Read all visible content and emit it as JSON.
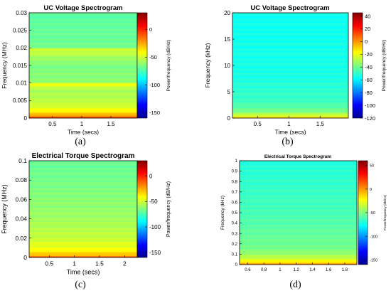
{
  "chart_data": [
    {
      "type": "heatmap",
      "id": "a",
      "panel_label": "(a)",
      "title": "UC Voltage Spectrogram",
      "xlabel": "Time (secs)",
      "ylabel": "Frequency (MHz)",
      "colorbar_label": "Power/frequency (dB/Hz)",
      "xlim": [
        0.1,
        1.95
      ],
      "ylim": [
        0,
        0.03
      ],
      "xticks": [
        0.5,
        1,
        1.5
      ],
      "xtick_labels": [
        "0.5",
        "1",
        "1.5"
      ],
      "yticks": [
        0,
        0.005,
        0.01,
        0.015,
        0.02,
        0.025,
        0.03
      ],
      "ytick_labels": [
        "0",
        "0.005",
        "0.01",
        "0.015",
        "0.02",
        "0.025",
        "0.03"
      ],
      "clim": [
        -160,
        30
      ],
      "cticks": [
        0,
        -50,
        -100,
        -150
      ],
      "ctick_labels": [
        "0",
        "-50",
        "-100",
        "-150"
      ],
      "bands": [
        {
          "y": 0.0,
          "value": 5
        },
        {
          "y": 0.0007,
          "value": -25
        },
        {
          "y": 0.002,
          "value": -40
        },
        {
          "y": 0.004,
          "value": -52
        },
        {
          "y": 0.008,
          "value": -58
        },
        {
          "y": 0.0097,
          "value": -42
        },
        {
          "y": 0.0103,
          "value": -62
        },
        {
          "y": 0.015,
          "value": -66
        },
        {
          "y": 0.0197,
          "value": -50
        },
        {
          "y": 0.0203,
          "value": -68
        },
        {
          "y": 0.025,
          "value": -70
        },
        {
          "y": 0.03,
          "value": -72
        }
      ]
    },
    {
      "type": "heatmap",
      "id": "b",
      "panel_label": "(b)",
      "title": "UC Voltage Spectrogram",
      "xlabel": "Time (secs)",
      "ylabel": "Frequency (kHz)",
      "colorbar_label": "Power/frequency (dB/Hz)",
      "xlim": [
        0.1,
        1.95
      ],
      "ylim": [
        0,
        20
      ],
      "xticks": [
        0.5,
        1,
        1.5
      ],
      "xtick_labels": [
        "0.5",
        "1",
        "1.5"
      ],
      "yticks": [
        0,
        5,
        10,
        15,
        20
      ],
      "ytick_labels": [
        "0",
        "5",
        "10",
        "15",
        "20"
      ],
      "clim": [
        -120,
        45
      ],
      "cticks": [
        40,
        20,
        0,
        -20,
        -40,
        -60,
        -80,
        -100,
        -120
      ],
      "ctick_labels": [
        "40",
        "20",
        "0",
        "-20",
        "-40",
        "-60",
        "-80",
        "-100",
        "-120"
      ],
      "bands": [
        {
          "y": 0,
          "value": 0
        },
        {
          "y": 0.4,
          "value": -22
        },
        {
          "y": 1.2,
          "value": -38
        },
        {
          "y": 3,
          "value": -48
        },
        {
          "y": 8,
          "value": -54
        },
        {
          "y": 20,
          "value": -56
        }
      ]
    },
    {
      "type": "heatmap",
      "id": "c",
      "panel_label": "(c)",
      "title": "Electrical Torque Spectrogram",
      "xlabel": "Time (secs)",
      "ylabel": "Frequency (MHz)",
      "colorbar_label": "Power/frequency (dB/Hz)",
      "xlim": [
        0.1,
        2.25
      ],
      "ylim": [
        0,
        0.1
      ],
      "xticks": [
        0.5,
        1,
        1.5,
        2
      ],
      "xtick_labels": [
        "0.5",
        "1",
        "1.5",
        "2"
      ],
      "yticks": [
        0,
        0.02,
        0.04,
        0.06,
        0.08,
        0.1
      ],
      "ytick_labels": [
        "0",
        "0.02",
        "0.04",
        "0.06",
        "0.08",
        "0.1"
      ],
      "clim": [
        -160,
        30
      ],
      "cticks": [
        0,
        -50,
        -100,
        -150
      ],
      "ctick_labels": [
        "0",
        "-50",
        "-100",
        "-150"
      ],
      "bands": [
        {
          "y": 0,
          "value": 5
        },
        {
          "y": 0.002,
          "value": -28
        },
        {
          "y": 0.008,
          "value": -42
        },
        {
          "y": 0.02,
          "value": -52
        },
        {
          "y": 0.045,
          "value": -60
        },
        {
          "y": 0.075,
          "value": -66
        },
        {
          "y": 0.1,
          "value": -70
        }
      ]
    },
    {
      "type": "heatmap",
      "id": "d",
      "panel_label": "(d)",
      "title": "Electrical Torque Spectrogram",
      "xlabel": "",
      "ylabel": "Frequency (kHz)",
      "colorbar_label": "Power/frequency (dB/Hz)",
      "xlim": [
        0.5,
        1.95
      ],
      "ylim": [
        0,
        1
      ],
      "xticks": [
        0.6,
        0.8,
        1,
        1.2,
        1.4,
        1.6,
        1.8
      ],
      "xtick_labels": [
        "0.6",
        "0.8",
        "1",
        "1.2",
        "1.4",
        "1.6",
        "1.8"
      ],
      "yticks": [
        0,
        0.1,
        0.2,
        0.3,
        0.4,
        0.5,
        0.6,
        0.7,
        0.8,
        0.9,
        1
      ],
      "ytick_labels": [
        "0",
        "0.1",
        "0.2",
        "0.3",
        "0.4",
        "0.5",
        "0.6",
        "0.7",
        "0.8",
        "0.9",
        "1"
      ],
      "clim": [
        -160,
        60
      ],
      "cticks": [
        50,
        0,
        -50,
        -100,
        -150
      ],
      "ctick_labels": [
        "50",
        "0",
        "-50",
        "-100",
        "-150"
      ],
      "bands": [
        {
          "y": 0,
          "value": 15
        },
        {
          "y": 0.02,
          "value": -15
        },
        {
          "y": 0.06,
          "value": -35
        },
        {
          "y": 0.15,
          "value": -52
        },
        {
          "y": 0.5,
          "value": -62
        },
        {
          "y": 1,
          "value": -70
        }
      ]
    }
  ]
}
